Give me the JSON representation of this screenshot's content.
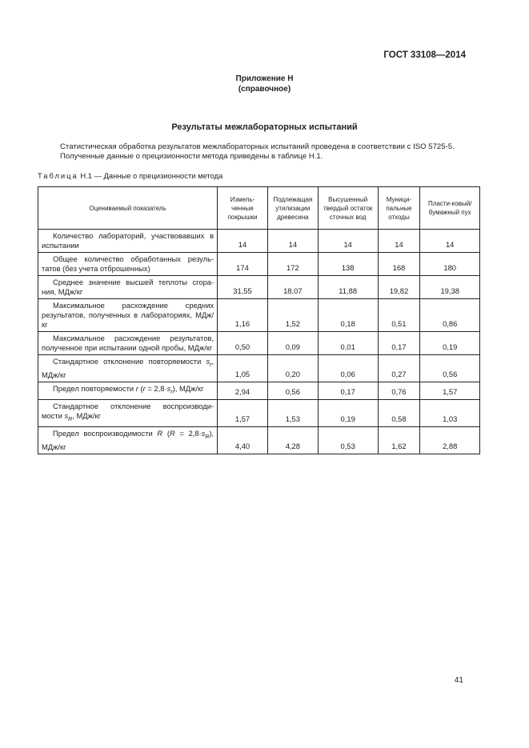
{
  "header": {
    "standard": "ГОСТ 33108—2014"
  },
  "appendix": {
    "title": "Приложение Н",
    "subtitle": "(справочное)"
  },
  "section_title": "Результаты межлабораторных испытаний",
  "intro": {
    "line1": "Статистическая обработка результатов межлабораторных испытаний проведена в соответствии с ISO 5725-5.",
    "line2": "Полученные данные о прецизионности метода приведены в таблице Н.1."
  },
  "caption": {
    "prefix": "Таблица",
    "rest": " Н.1 — Данные о прецизионности метода"
  },
  "table": {
    "headers": [
      "Оцениваемый показатель",
      "Измель-ченные покрышки",
      "Подлежащая утилизации древесина",
      "Высушенный твердый остаток сточных вод",
      "Муници-пальные отходы",
      "Пласти-ковый/ бумажный пух"
    ],
    "rows": [
      {
        "label": [
          {
            "t": "Количество лабораторий, участвовавших в испытании"
          }
        ],
        "values": [
          "14",
          "14",
          "14",
          "14",
          "14"
        ]
      },
      {
        "label": [
          {
            "t": "Общее количество обработанных резуль-татов (без учета отброшенных)"
          }
        ],
        "values": [
          "174",
          "172",
          "138",
          "168",
          "180"
        ]
      },
      {
        "label": [
          {
            "t": "Среднее значение высшей теплоты сгора-ния, МДж/кг"
          }
        ],
        "values": [
          "31,55",
          "18,07",
          "11,88",
          "19,82",
          "19,38"
        ]
      },
      {
        "label": [
          {
            "t": "Максимальное расхождение средних результатов, полученных в лабораториях, МДж/кг"
          }
        ],
        "values": [
          "1,16",
          "1,52",
          "0,18",
          "0,51",
          "0,86"
        ]
      },
      {
        "label": [
          {
            "t": "Максимальное расхождение результатов, полученное при испытании одной пробы, МДж/кг"
          }
        ],
        "values": [
          "0,50",
          "0,09",
          "0,01",
          "0,17",
          "0,19"
        ]
      },
      {
        "label": [
          {
            "t": "Стандартное отклонение повторяемости "
          },
          {
            "t": "s",
            "i": true
          },
          {
            "t": "r",
            "sub": true
          },
          {
            "t": ", МДж/кг"
          }
        ],
        "values": [
          "1,05",
          "0,20",
          "0,06",
          "0,27",
          "0,56"
        ]
      },
      {
        "label": [
          {
            "t": "Предел повторяемости "
          },
          {
            "t": "r",
            "i": true
          },
          {
            "t": " ("
          },
          {
            "t": "r",
            "i": true
          },
          {
            "t": " = 2,8·"
          },
          {
            "t": "s",
            "i": true
          },
          {
            "t": "r",
            "sub": true
          },
          {
            "t": "), МДж/кг"
          }
        ],
        "values": [
          "2,94",
          "0,56",
          "0,17",
          "0,76",
          "1,57"
        ]
      },
      {
        "label": [
          {
            "t": "Стандартное отклонение воспроизводи-мости "
          },
          {
            "t": "s",
            "i": true
          },
          {
            "t": "R",
            "sub": true
          },
          {
            "t": ", МДж/кг"
          }
        ],
        "values": [
          "1,57",
          "1,53",
          "0,19",
          "0,58",
          "1,03"
        ]
      },
      {
        "label": [
          {
            "t": "Предел воспроизводимости "
          },
          {
            "t": "R",
            "i": true
          },
          {
            "t": " ("
          },
          {
            "t": "R",
            "i": true
          },
          {
            "t": " = 2,8·"
          },
          {
            "t": "s",
            "i": true
          },
          {
            "t": "R",
            "sub": true
          },
          {
            "t": "), МДж/кг"
          }
        ],
        "values": [
          "4,40",
          "4,28",
          "0,53",
          "1,62",
          "2,88"
        ]
      }
    ]
  },
  "page_number": "41"
}
